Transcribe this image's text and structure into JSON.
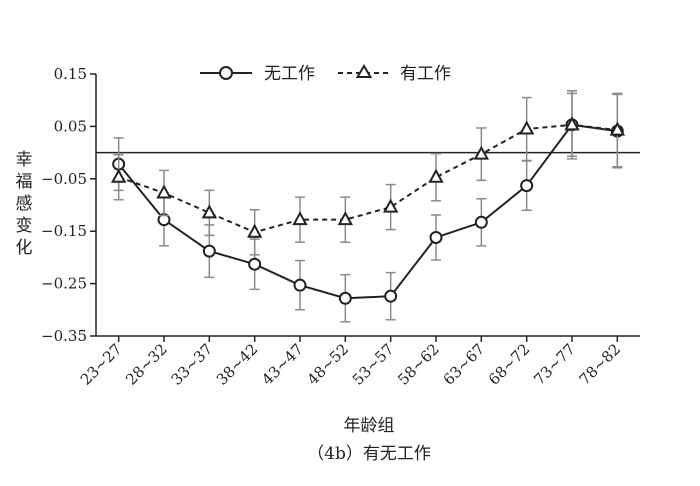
{
  "chart_data": {
    "type": "line",
    "categories": [
      "23~27",
      "28~32",
      "33~37",
      "38~42",
      "43~47",
      "48~52",
      "53~57",
      "58~62",
      "63~67",
      "68~72",
      "73~77",
      "78~82"
    ],
    "ylim": [
      -0.35,
      0.15
    ],
    "yticks": [
      0.15,
      0.05,
      -0.05,
      -0.15,
      -0.25,
      -0.35
    ],
    "ytick_labels": [
      "0.15",
      "0.05",
      "−0.05",
      "−0.15",
      "−0.25",
      "−0.35"
    ],
    "reference_line": 0,
    "xlabel": "年龄组",
    "ylabel": "幸福感变化",
    "caption": "（4b）有无工作",
    "legend_position": "top",
    "series": [
      {
        "name": "无工作",
        "line_style": "solid",
        "marker": "circle",
        "values": [
          -0.022,
          -0.128,
          -0.188,
          -0.213,
          -0.253,
          -0.278,
          -0.274,
          -0.162,
          -0.133,
          -0.063,
          0.053,
          0.041
        ],
        "err": [
          0.05,
          0.05,
          0.05,
          0.048,
          0.047,
          0.045,
          0.045,
          0.043,
          0.045,
          0.047,
          0.06,
          0.07
        ]
      },
      {
        "name": "有工作",
        "line_style": "dashed",
        "marker": "triangle",
        "values": [
          -0.047,
          -0.077,
          -0.115,
          -0.152,
          -0.128,
          -0.128,
          -0.104,
          -0.047,
          -0.003,
          0.045,
          0.053,
          0.043
        ],
        "err": [
          0.043,
          0.043,
          0.043,
          0.043,
          0.043,
          0.043,
          0.043,
          0.045,
          0.05,
          0.06,
          0.065,
          0.07
        ]
      }
    ]
  }
}
